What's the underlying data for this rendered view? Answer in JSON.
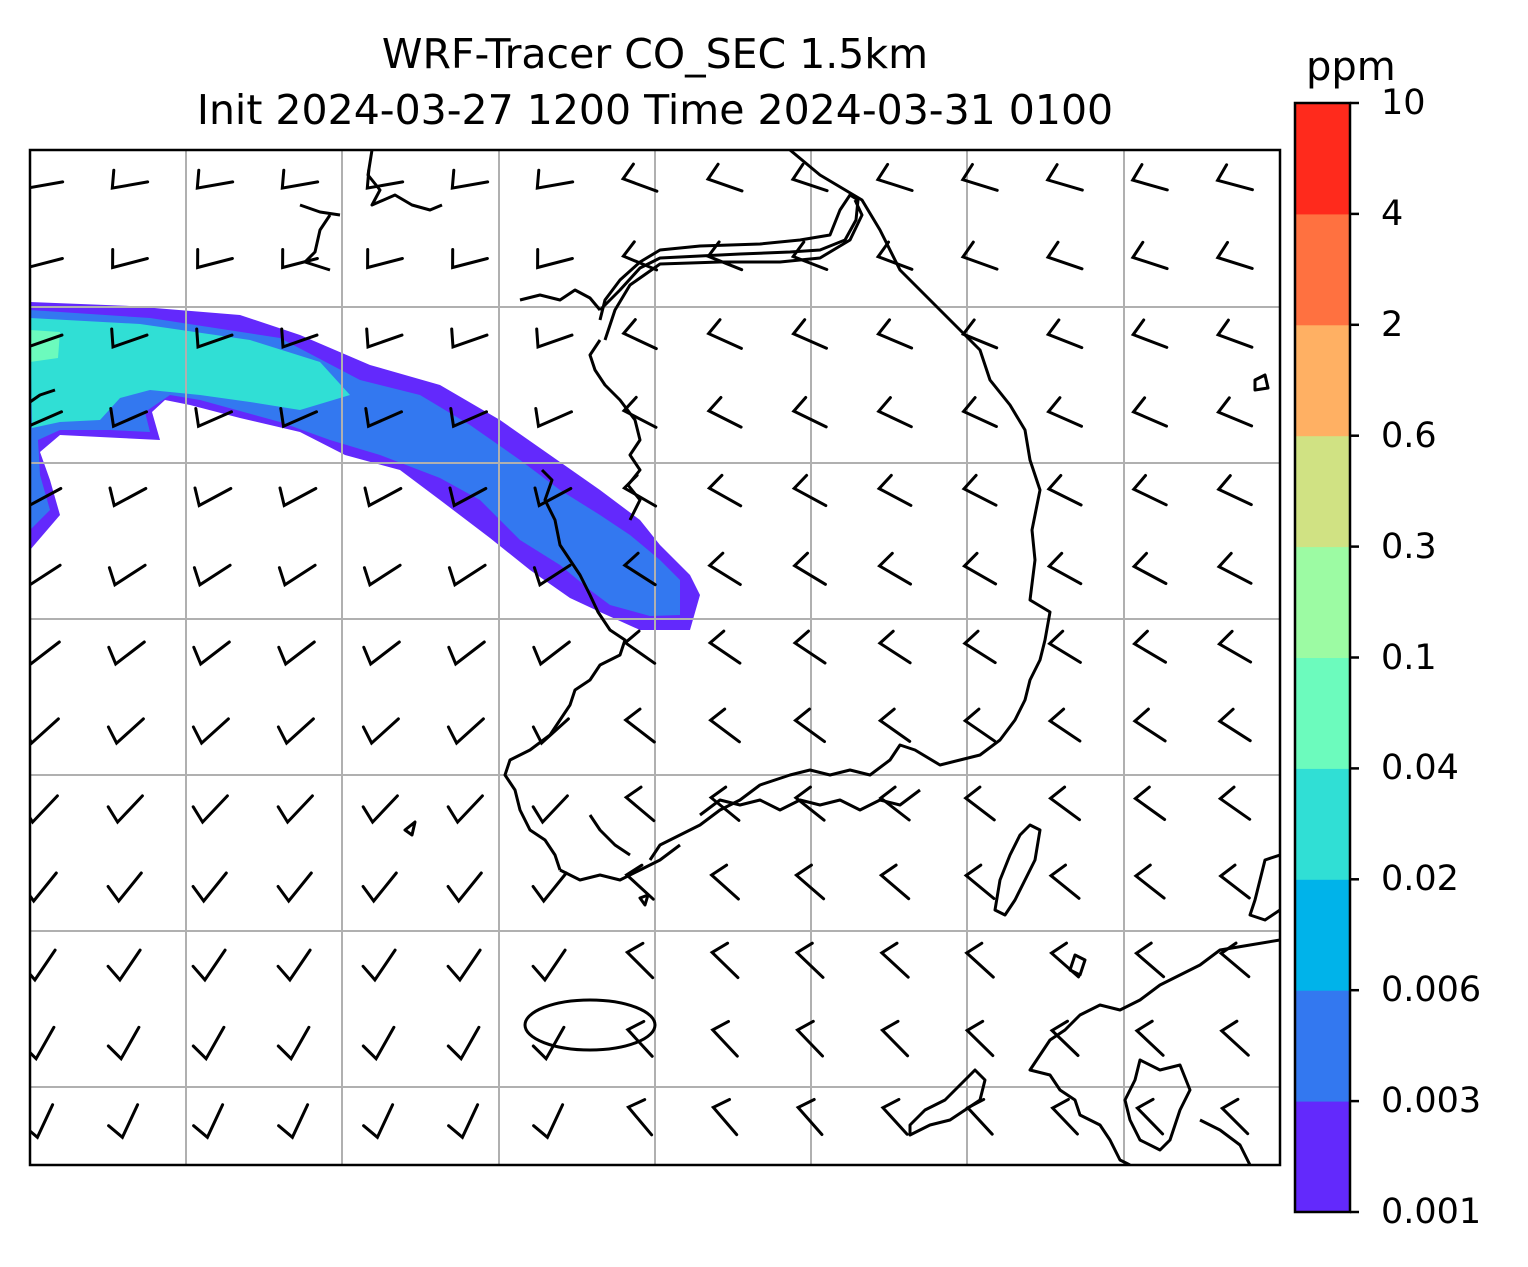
{
  "title": {
    "line1": "WRF-Tracer CO_SEC 1.5km",
    "line2": "Init 2024-03-27 1200 Time 2024-03-31 0100"
  },
  "colorbar": {
    "unit": "ppm",
    "levels": [
      "0.001",
      "0.003",
      "0.006",
      "0.02",
      "0.04",
      "0.1",
      "0.3",
      "0.6",
      "2",
      "4",
      "10"
    ],
    "colors": [
      "#6329fc",
      "#3378f0",
      "#00b3ea",
      "#30dfd5",
      "#6cfbbd",
      "#9cfba3",
      "#d0e283",
      "#ffb063",
      "#ff7140",
      "#ff2a1c"
    ]
  },
  "map": {
    "plume_colors": {
      "outer": "#6329fc",
      "mid": "#3378f0",
      "cyan": "#30dfd5",
      "inner": "#6cfbbd"
    }
  }
}
